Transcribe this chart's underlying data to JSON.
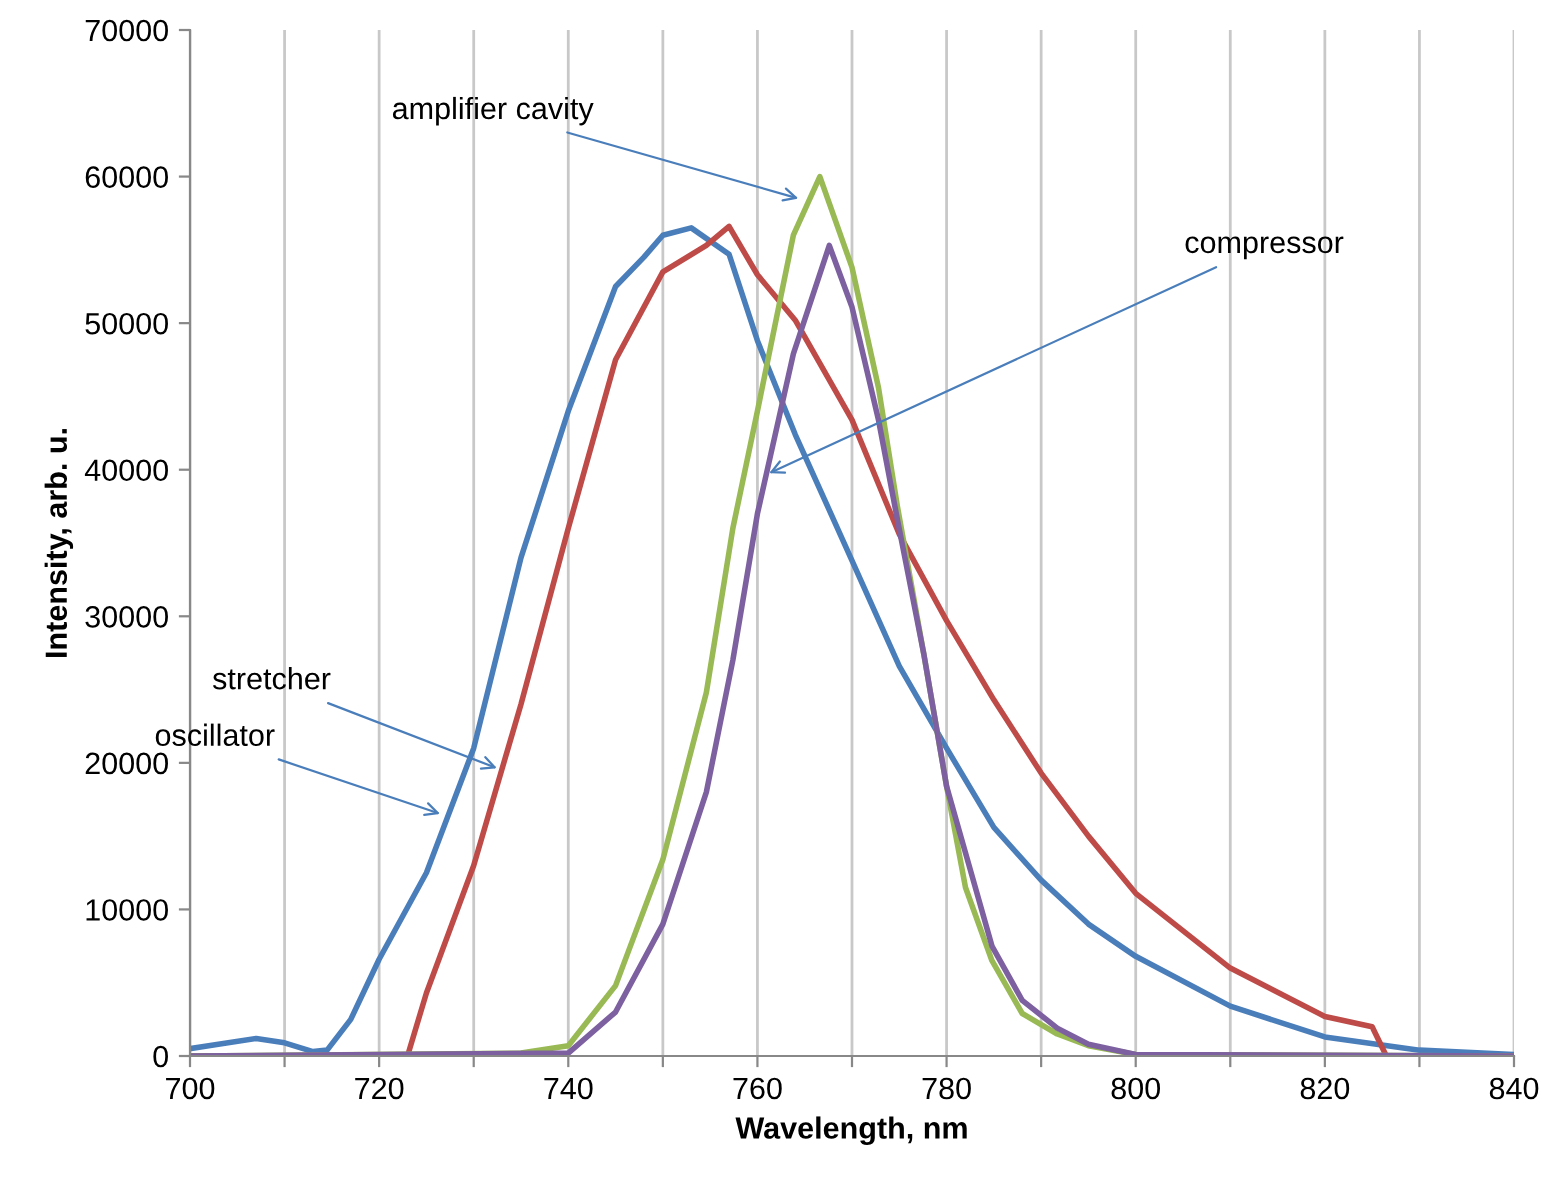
{
  "chart_data": {
    "type": "line",
    "xlabel": "Wavelength, nm",
    "ylabel": "Intensity, arb. u.",
    "xlim": [
      700,
      840
    ],
    "xticks": [
      700,
      {
        "value": 710,
        "label": null
      },
      720,
      {
        "value": 730,
        "label": null
      },
      740,
      {
        "value": 750,
        "label": null
      },
      760,
      {
        "value": 770,
        "label": null
      },
      780,
      {
        "value": 790,
        "label": null
      },
      800,
      {
        "value": 810,
        "label": null
      },
      820,
      {
        "value": 830,
        "label": null
      },
      840
    ],
    "ylim": [
      0,
      70000
    ],
    "yticks": [
      0,
      10000,
      20000,
      30000,
      40000,
      50000,
      60000,
      70000
    ],
    "grid": "x",
    "legend": false,
    "marker": "none",
    "line_style": "solid",
    "series": [
      {
        "color": "#4a7ebb",
        "x": [
          700,
          703,
          707,
          710,
          713,
          714.5,
          717,
          720,
          725,
          730,
          735,
          740,
          745,
          748,
          750,
          753,
          757,
          760,
          764,
          770,
          775,
          780,
          785,
          790,
          795,
          800,
          810,
          820,
          830,
          840
        ],
        "values": [
          500,
          800,
          1200,
          900,
          300,
          400,
          2500,
          6600,
          12500,
          21000,
          34000,
          44000,
          52500,
          54500,
          56000,
          56500,
          54700,
          48800,
          42400,
          33800,
          26600,
          21000,
          15600,
          12000,
          9000,
          6800,
          3400,
          1300,
          400,
          100
        ]
      },
      {
        "color": "#be4b48",
        "x": [
          700,
          723,
          725,
          730,
          735,
          740,
          745,
          750,
          754.6,
          757,
          760,
          764,
          770,
          775,
          780,
          785,
          790,
          795,
          800,
          810,
          820,
          825,
          826.5,
          840
        ],
        "values": [
          0,
          0,
          4300,
          13000,
          24000,
          36000,
          47500,
          53500,
          55300,
          56600,
          53300,
          50200,
          43400,
          35600,
          29700,
          24300,
          19300,
          15000,
          11100,
          6000,
          2700,
          2000,
          0,
          0
        ]
      },
      {
        "color": "#98b954",
        "x": [
          700,
          735,
          740,
          745,
          750,
          754.6,
          757.4,
          760,
          763.8,
          766.6,
          770,
          772.8,
          774.8,
          777.6,
          780,
          782,
          784.8,
          788,
          791.7,
          795,
          800,
          840
        ],
        "values": [
          0,
          200,
          700,
          4800,
          13400,
          24800,
          36000,
          44000,
          56000,
          60000,
          53800,
          45600,
          37500,
          27400,
          18400,
          11500,
          6500,
          2900,
          1500,
          700,
          100,
          0
        ]
      },
      {
        "color": "#7d60a0",
        "x": [
          700,
          740,
          745,
          750,
          754.6,
          757.4,
          760,
          763.8,
          767.6,
          770,
          772.8,
          774.8,
          777.6,
          780,
          784.8,
          788,
          791.7,
          795,
          800,
          840
        ],
        "values": [
          0,
          200,
          3000,
          9000,
          18000,
          27000,
          37000,
          47900,
          55300,
          51100,
          43400,
          36600,
          27400,
          18400,
          7500,
          3800,
          1900,
          800,
          100,
          0
        ]
      }
    ],
    "annotations": [
      {
        "text": "oscillator",
        "x": 727,
        "y": 16400
      },
      {
        "text": "stretcher",
        "x": 733,
        "y": 19500
      },
      {
        "text": "amplifier cavity",
        "x": 764.9,
        "y": 58400
      },
      {
        "text": "compressor",
        "x": 760.7,
        "y": 39600
      }
    ]
  }
}
